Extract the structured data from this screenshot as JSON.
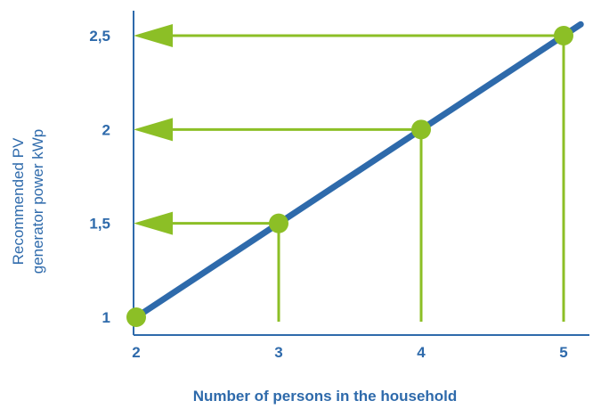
{
  "chart_data": {
    "type": "line",
    "x": [
      2,
      3,
      4,
      5
    ],
    "series": [
      {
        "values": [
          1,
          1.5,
          2,
          2.5
        ]
      }
    ],
    "x_ticks": [
      "2",
      "3",
      "4",
      "5"
    ],
    "y_ticks": [
      "1",
      "1,5",
      "2",
      "2,5"
    ],
    "y_tick_values": [
      1,
      1.5,
      2,
      2.5
    ],
    "xlabel": "Number of persons in the household",
    "ylabel_lines": [
      "Recommended PV",
      "generator power kWp"
    ],
    "xlim": [
      2,
      5
    ],
    "ylim": [
      1,
      2.5
    ],
    "highlighted_points": [
      {
        "x": 3,
        "y": 1.5
      },
      {
        "x": 4,
        "y": 2
      },
      {
        "x": 5,
        "y": 2.5
      }
    ],
    "origin_point": {
      "x": 2,
      "y": 1
    },
    "grid": false,
    "colors": {
      "line": "#2e6aab",
      "marker": "#8cbf26",
      "guide": "#8cbf26",
      "axis": "#2e6aab",
      "text": "#2e6aab"
    }
  }
}
